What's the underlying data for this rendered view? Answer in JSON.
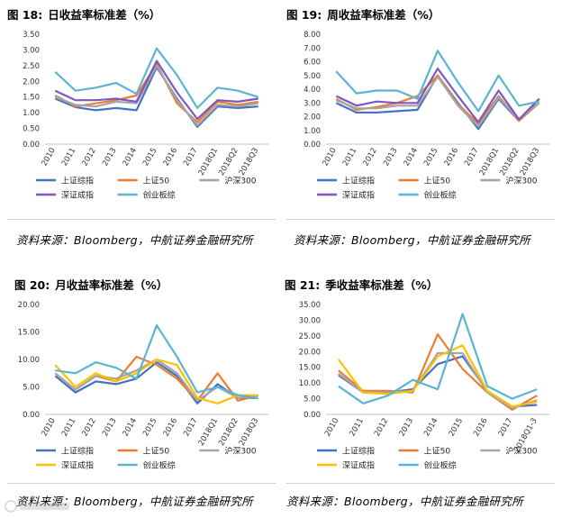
{
  "colors": {
    "上证综指": "#4472c4",
    "上证50": "#ed7d31",
    "沪深300": "#a5a5a5",
    "深证成指": "#ffc000",
    "深证成指_alt": "#7e57c2",
    "创业板综": "#5ab4d2"
  },
  "chart_data": [
    {
      "type": "line",
      "fig_label": "图 18:",
      "title": "日收益率标准差（%）",
      "source": "资料来源：Bloomberg，中航证券金融研究所",
      "categories": [
        "2010",
        "2011",
        "2012",
        "2013",
        "2014",
        "2015",
        "2016",
        "2017",
        "2018Q1",
        "2018Q2",
        "2018Q3"
      ],
      "yticks": [
        "3.50",
        "3.00",
        "2.50",
        "2.00",
        "1.50",
        "1.00",
        "0.50",
        "0.00"
      ],
      "ylim": [
        0,
        3.5
      ],
      "legend_cols": 3,
      "series": [
        {
          "name": "上证综指",
          "color": "#4472c4",
          "values": [
            1.45,
            1.18,
            1.08,
            1.15,
            1.08,
            2.45,
            1.45,
            0.55,
            1.2,
            1.15,
            1.2
          ]
        },
        {
          "name": "上证50",
          "color": "#ed7d31",
          "values": [
            1.55,
            1.2,
            1.3,
            1.4,
            1.55,
            2.55,
            1.3,
            0.7,
            1.35,
            1.25,
            1.35
          ]
        },
        {
          "name": "沪深300",
          "color": "#a5a5a5",
          "values": [
            1.5,
            1.25,
            1.2,
            1.35,
            1.3,
            2.5,
            1.4,
            0.6,
            1.25,
            1.2,
            1.3
          ]
        },
        {
          "name": "深证成指",
          "color": "#7e57c2",
          "values": [
            1.7,
            1.4,
            1.4,
            1.45,
            1.35,
            2.65,
            1.65,
            0.8,
            1.4,
            1.35,
            1.45
          ]
        },
        {
          "name": "创业板综",
          "color": "#5ab4d2",
          "values": [
            2.3,
            1.7,
            1.8,
            1.95,
            1.6,
            3.05,
            2.2,
            1.15,
            1.8,
            1.7,
            1.5
          ]
        }
      ]
    },
    {
      "type": "line",
      "fig_label": "图 19:",
      "title": "周收益率标准差（%）",
      "source": "资料来源：Bloomberg，中航证券金融研究所",
      "categories": [
        "2010",
        "2011",
        "2012",
        "2013",
        "2014",
        "2015",
        "2016",
        "2017",
        "2018Q1",
        "2018Q2",
        "2018Q3"
      ],
      "yticks": [
        "8.00",
        "7.00",
        "6.00",
        "5.00",
        "4.00",
        "3.00",
        "2.00",
        "1.00",
        "0.00"
      ],
      "ylim": [
        0,
        8
      ],
      "legend_cols": 3,
      "series": [
        {
          "name": "上证综指",
          "color": "#4472c4",
          "values": [
            3.0,
            2.3,
            2.3,
            2.4,
            2.5,
            5.0,
            3.0,
            1.1,
            3.3,
            1.7,
            3.3
          ]
        },
        {
          "name": "上证50",
          "color": "#ed7d31",
          "values": [
            3.3,
            2.5,
            2.7,
            3.0,
            3.5,
            5.0,
            2.9,
            1.5,
            3.5,
            1.7,
            3.0
          ]
        },
        {
          "name": "沪深300",
          "color": "#a5a5a5",
          "values": [
            3.2,
            2.6,
            2.6,
            2.8,
            2.8,
            4.9,
            2.8,
            1.3,
            3.4,
            1.8,
            3.0
          ]
        },
        {
          "name": "深证成指",
          "color": "#7e57c2",
          "values": [
            3.5,
            2.8,
            3.1,
            3.0,
            3.0,
            5.5,
            3.5,
            1.6,
            3.9,
            1.8,
            3.3
          ]
        },
        {
          "name": "创业板综",
          "color": "#5ab4d2",
          "values": [
            5.3,
            3.7,
            3.9,
            3.9,
            3.3,
            6.8,
            4.5,
            2.4,
            5.0,
            2.8,
            3.1
          ]
        }
      ]
    },
    {
      "type": "line",
      "fig_label": "图 20:",
      "title": "月收益率标准差（%）",
      "source": "资料来源：Bloomberg，中航证券金融研究所",
      "categories": [
        "2010",
        "2011",
        "2012",
        "2013",
        "2014",
        "2015",
        "2016",
        "2017",
        "2018Q1",
        "2018Q2",
        "2018Q3"
      ],
      "yticks": [
        "20.00",
        "15.00",
        "10.00",
        "5.00",
        "0.00"
      ],
      "ylim": [
        0,
        20
      ],
      "legend_cols": 3,
      "series": [
        {
          "name": "上证综指",
          "color": "#4472c4",
          "values": [
            7.0,
            4.0,
            6.0,
            5.5,
            6.5,
            9.5,
            7.0,
            2.0,
            5.5,
            3.0,
            3.0
          ]
        },
        {
          "name": "上证50",
          "color": "#ed7d31",
          "values": [
            7.5,
            4.5,
            7.0,
            6.0,
            10.5,
            9.0,
            6.5,
            2.5,
            7.5,
            2.5,
            3.5
          ]
        },
        {
          "name": "沪深300",
          "color": "#a5a5a5",
          "values": [
            7.5,
            4.5,
            7.0,
            6.5,
            8.0,
            10.0,
            7.5,
            2.5,
            5.0,
            3.0,
            3.5
          ]
        },
        {
          "name": "深证成指",
          "color": "#ffc000",
          "values": [
            9.0,
            5.0,
            7.5,
            6.0,
            7.5,
            10.0,
            9.0,
            3.0,
            2.0,
            3.5,
            3.5
          ]
        },
        {
          "name": "创业板综",
          "color": "#5ab4d2",
          "values": [
            8.0,
            7.5,
            9.5,
            8.5,
            6.5,
            16.2,
            10.5,
            4.0,
            5.0,
            3.5,
            3.0
          ]
        }
      ]
    },
    {
      "type": "line",
      "fig_label": "图 21:",
      "title": "季收益率标准差（%）",
      "source": "资料来源：Bloomberg，中航证券金融研究所",
      "categories": [
        "2010",
        "2011",
        "2012",
        "2013",
        "2014",
        "2015",
        "2016",
        "2017",
        "2018Q1-3"
      ],
      "yticks": [
        "35.00",
        "30.00",
        "25.00",
        "20.00",
        "15.00",
        "10.00",
        "5.00",
        "0.00"
      ],
      "ylim": [
        0,
        35
      ],
      "legend_cols": 3,
      "series": [
        {
          "name": "上证综指",
          "color": "#4472c4",
          "values": [
            12.5,
            7.0,
            7.0,
            8.0,
            16.0,
            18.5,
            7.5,
            2.5,
            3.0
          ]
        },
        {
          "name": "上证50",
          "color": "#ed7d31",
          "values": [
            14.0,
            7.5,
            7.5,
            7.0,
            25.5,
            14.5,
            7.0,
            1.5,
            6.0
          ]
        },
        {
          "name": "沪深300",
          "color": "#a5a5a5",
          "values": [
            13.0,
            7.0,
            7.0,
            7.5,
            19.5,
            19.5,
            7.0,
            2.0,
            4.5
          ]
        },
        {
          "name": "深证成指",
          "color": "#ffc000",
          "values": [
            17.5,
            7.0,
            6.5,
            7.5,
            18.5,
            22.0,
            7.5,
            2.5,
            4.0
          ]
        },
        {
          "name": "创业板综",
          "color": "#5ab4d2",
          "values": [
            9.0,
            3.5,
            6.0,
            11.0,
            8.0,
            32.0,
            9.0,
            5.0,
            8.0
          ]
        }
      ]
    }
  ]
}
